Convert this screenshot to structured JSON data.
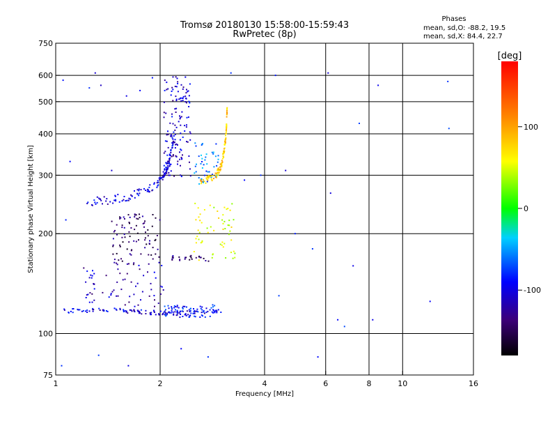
{
  "chart_data": {
    "type": "scatter",
    "title": "Tromsø 20180130 15:58:00-15:59:43",
    "subtitle": "RwPretec (8p)",
    "xlabel": "Frequency [MHz]",
    "ylabel": "Stationary phase Virtual Height [km]",
    "x_scale": "log",
    "y_scale": "log",
    "xlim": [
      1,
      16
    ],
    "ylim": [
      75,
      750
    ],
    "x_ticks": [
      1,
      2,
      4,
      6,
      8,
      10,
      16
    ],
    "y_ticks": [
      75,
      100,
      200,
      300,
      400,
      500,
      600,
      750
    ],
    "x_gridlines": [
      2,
      4,
      6,
      8,
      10
    ],
    "y_gridlines": [
      100,
      200,
      300,
      400,
      500,
      600
    ],
    "grid": true,
    "stats": {
      "header": "Phases",
      "line_o": "mean, sd,O: -88.2, 19.5",
      "line_x": "mean, sd,X: 84.4, 22.7"
    },
    "colorbar": {
      "label": "[deg]",
      "min": -180,
      "max": 180,
      "ticks": [
        "100",
        "0",
        "-100"
      ],
      "tick_values": [
        100,
        0,
        -100
      ]
    },
    "traces": [
      {
        "kind": "curve",
        "x": [
          1.2,
          1.4,
          1.6,
          1.8,
          1.95,
          2.05,
          2.12,
          2.18
        ],
        "y": [
          248,
          252,
          258,
          268,
          282,
          300,
          330,
          380
        ],
        "phase": -110,
        "count": 120,
        "jitter": 6
      },
      {
        "kind": "band",
        "x": [
          2.05,
          2.45
        ],
        "y": [
          290,
          600
        ],
        "phase": -115,
        "count": 150
      },
      {
        "kind": "band",
        "x": [
          2.5,
          2.95
        ],
        "y": [
          280,
          380
        ],
        "phase": -70,
        "count": 50
      },
      {
        "kind": "curve",
        "x": [
          2.6,
          2.75,
          2.9,
          3.0,
          3.05,
          3.1,
          3.12
        ],
        "y": [
          288,
          292,
          300,
          320,
          350,
          400,
          480
        ],
        "phase": 85,
        "count": 110,
        "jitter": 5
      },
      {
        "kind": "band",
        "x": [
          1.45,
          2.0
        ],
        "y": [
          160,
          230
        ],
        "phase": -145,
        "count": 90
      },
      {
        "kind": "band",
        "x": [
          1.2,
          2.05
        ],
        "y": [
          120,
          165
        ],
        "phase": -120,
        "count": 70
      },
      {
        "kind": "curve",
        "x": [
          1.05,
          1.4,
          1.8,
          2.2,
          2.6,
          3.0
        ],
        "y": [
          117,
          118,
          116,
          115,
          116,
          117
        ],
        "phase": -110,
        "count": 120,
        "jitter": 3
      },
      {
        "kind": "band",
        "x": [
          2.05,
          2.9
        ],
        "y": [
          112,
          122
        ],
        "phase": -95,
        "count": 70
      },
      {
        "kind": "band",
        "x": [
          2.5,
          3.3
        ],
        "y": [
          165,
          250
        ],
        "phase": 55,
        "count": 60
      },
      {
        "kind": "band",
        "x": [
          2.15,
          2.8
        ],
        "y": [
          165,
          172
        ],
        "phase": -140,
        "count": 25
      },
      {
        "kind": "scatter",
        "x": [
          1.05,
          1.1,
          1.25,
          1.3,
          1.35,
          1.45,
          1.6,
          1.75,
          1.9,
          2.3,
          2.75,
          3.2,
          3.5,
          3.9,
          4.3,
          4.6,
          4.9,
          5.5,
          5.7,
          6.1,
          6.2,
          6.5,
          7.2,
          7.5,
          8.2,
          8.5,
          13.5,
          13.6,
          12.0,
          6.8,
          4.4,
          1.04,
          1.07,
          1.33,
          1.62
        ],
        "y": [
          580,
          330,
          550,
          610,
          560,
          310,
          520,
          540,
          590,
          90,
          85,
          610,
          290,
          300,
          600,
          310,
          200,
          180,
          85,
          610,
          265,
          110,
          160,
          430,
          110,
          560,
          575,
          415,
          125,
          105,
          130,
          80,
          220,
          86,
          80
        ],
        "phase": -100,
        "count": 35,
        "jitter": 0
      }
    ]
  }
}
